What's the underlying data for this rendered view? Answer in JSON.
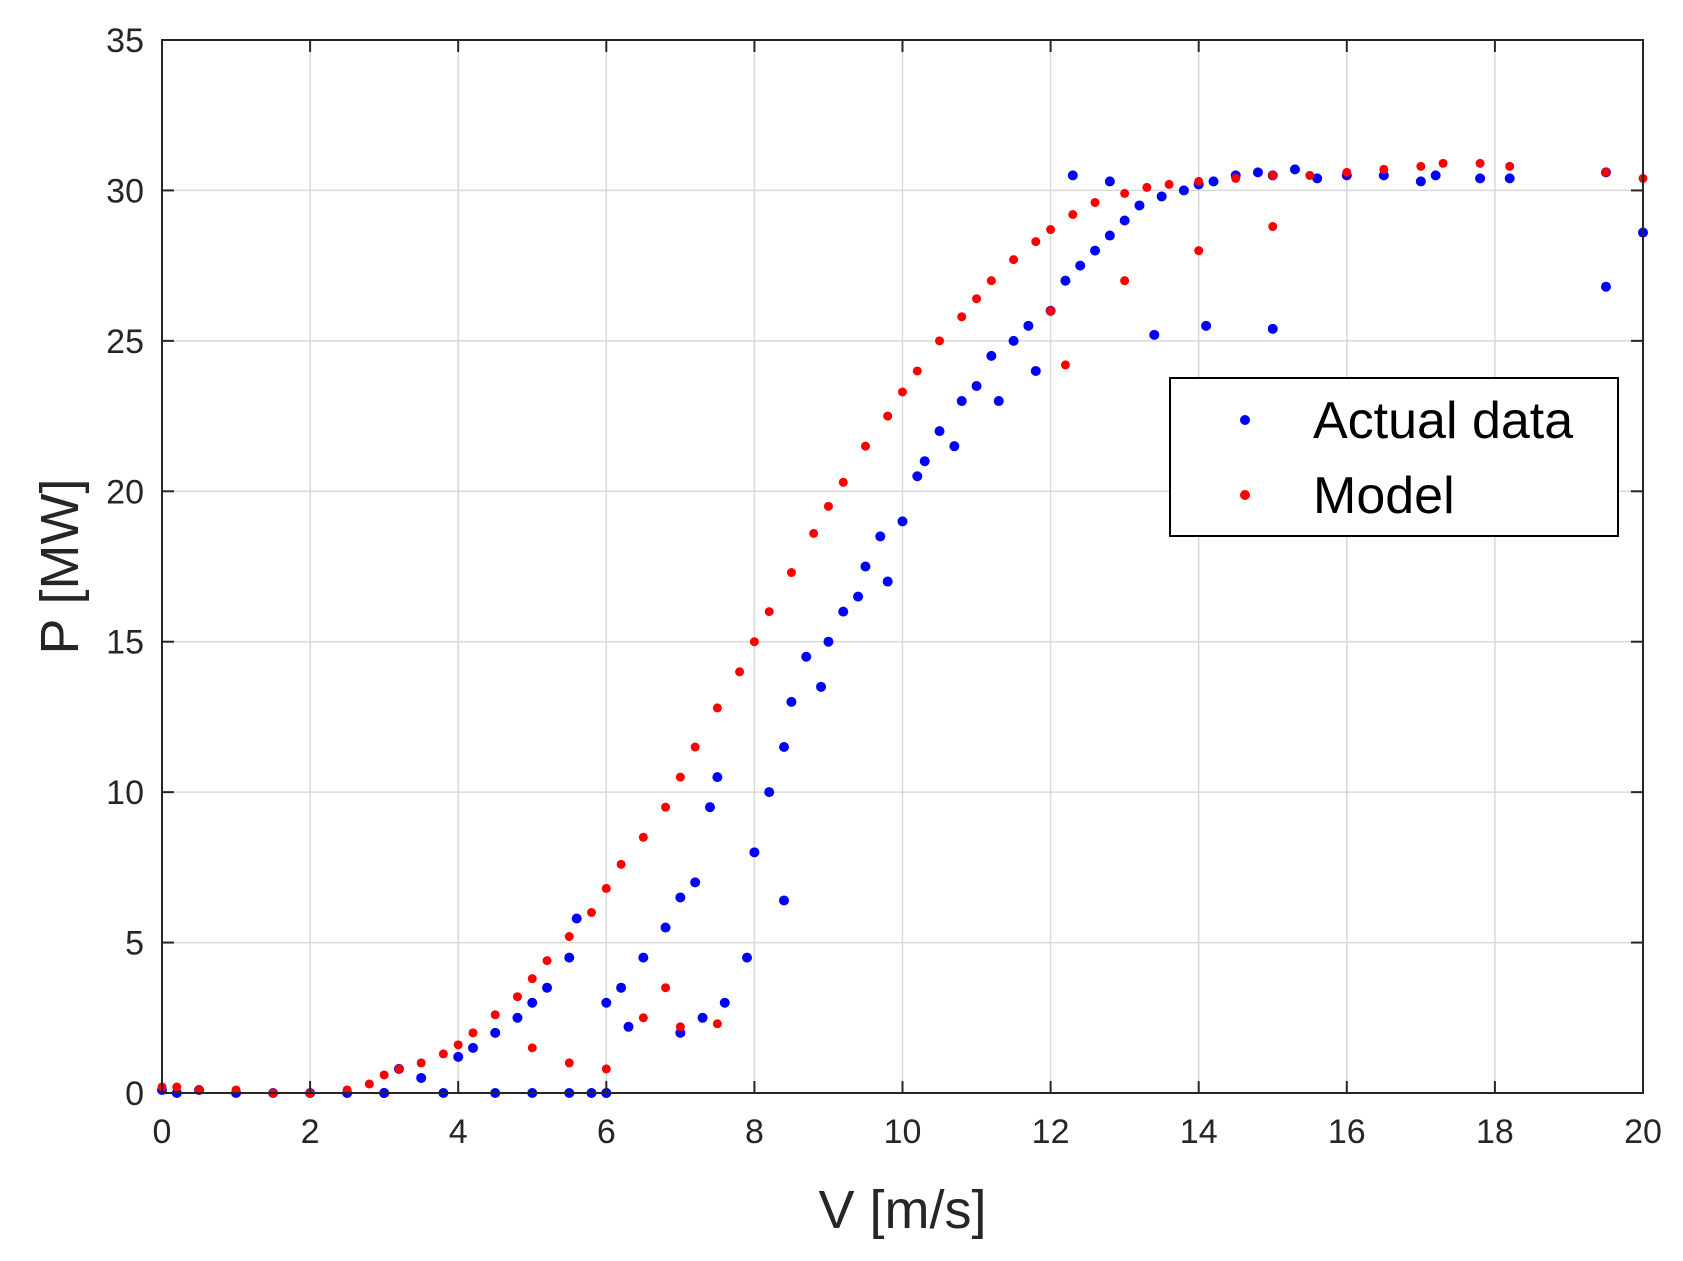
{
  "chart_data": {
    "type": "scatter",
    "title": "",
    "xlabel": "V [m/s]",
    "ylabel": "P [MW]",
    "xlim": [
      0,
      20
    ],
    "ylim": [
      0,
      35
    ],
    "xticks": [
      "0",
      "2",
      "4",
      "6",
      "8",
      "10",
      "12",
      "14",
      "16",
      "18",
      "20"
    ],
    "yticks": [
      "0",
      "5",
      "10",
      "15",
      "20",
      "25",
      "30",
      "35"
    ],
    "grid": true,
    "legend_position": "center-right",
    "series": [
      {
        "name": "Actual data",
        "color": "#0000ff",
        "marker": "dot",
        "x": [
          0.0,
          0.2,
          0.5,
          1.0,
          1.5,
          2.0,
          2.5,
          3.0,
          3.2,
          3.5,
          3.8,
          4.0,
          4.2,
          4.5,
          4.8,
          5.0,
          5.2,
          5.5,
          5.8,
          6.0,
          6.0,
          6.2,
          6.5,
          6.8,
          7.0,
          7.2,
          7.4,
          7.6,
          7.9,
          7.5,
          7.0,
          8.0,
          8.2,
          8.4,
          8.5,
          8.7,
          8.9,
          9.0,
          9.2,
          9.4,
          9.5,
          9.7,
          9.8,
          10.0,
          10.2,
          10.3,
          10.5,
          10.7,
          10.8,
          11.0,
          11.2,
          11.3,
          11.5,
          11.7,
          11.8,
          12.0,
          12.2,
          12.4,
          12.6,
          12.8,
          13.0,
          13.2,
          13.5,
          13.8,
          14.0,
          14.2,
          14.5,
          14.8,
          15.0,
          15.3,
          15.6,
          16.0,
          16.5,
          17.0,
          17.2,
          14.1,
          15.0,
          17.8,
          18.2,
          19.5,
          19.5,
          20.0,
          12.3,
          12.8,
          13.4,
          4.5,
          5.0,
          5.5,
          6.0,
          3.0,
          8.4,
          7.3,
          6.3,
          5.6
        ],
        "y": [
          0.1,
          0.0,
          0.1,
          0.0,
          0.0,
          0.0,
          0.0,
          0.0,
          0.8,
          0.5,
          0.0,
          1.2,
          1.5,
          2.0,
          2.5,
          3.0,
          3.5,
          4.5,
          0.0,
          0.0,
          3.0,
          3.5,
          4.5,
          5.5,
          6.5,
          7.0,
          9.5,
          3.0,
          4.5,
          10.5,
          2.0,
          8.0,
          10.0,
          11.5,
          13.0,
          14.5,
          13.5,
          15.0,
          16.0,
          16.5,
          17.5,
          18.5,
          17.0,
          19.0,
          20.5,
          21.0,
          22.0,
          21.5,
          23.0,
          23.5,
          24.5,
          23.0,
          25.0,
          25.5,
          24.0,
          26.0,
          27.0,
          27.5,
          28.0,
          28.5,
          29.0,
          29.5,
          29.8,
          30.0,
          30.2,
          30.3,
          30.5,
          30.6,
          30.5,
          30.7,
          30.4,
          30.5,
          30.5,
          30.3,
          30.5,
          25.5,
          25.4,
          30.4,
          30.4,
          26.8,
          30.6,
          28.6,
          30.5,
          30.3,
          25.2,
          0.0,
          0.0,
          0.0,
          0.0,
          0.0,
          6.4,
          2.5,
          2.2,
          5.8
        ]
      },
      {
        "name": "Model",
        "color": "#ff0000",
        "marker": "dot",
        "x": [
          0.0,
          0.2,
          0.5,
          1.0,
          1.5,
          2.0,
          2.5,
          2.8,
          3.0,
          3.2,
          3.5,
          3.8,
          4.0,
          4.2,
          4.5,
          4.8,
          5.0,
          5.2,
          5.5,
          5.8,
          6.0,
          6.2,
          6.5,
          6.8,
          7.0,
          7.2,
          7.5,
          7.8,
          8.0,
          8.2,
          8.5,
          8.8,
          9.0,
          9.2,
          9.5,
          9.8,
          10.0,
          10.2,
          10.5,
          10.8,
          11.0,
          11.2,
          11.5,
          11.8,
          12.0,
          12.3,
          12.6,
          13.0,
          13.3,
          13.6,
          14.0,
          14.5,
          15.0,
          15.5,
          16.0,
          16.5,
          17.0,
          17.3,
          17.8,
          18.2,
          19.5,
          20.0,
          12.0,
          13.0,
          14.0,
          15.0,
          5.0,
          5.5,
          6.0,
          6.5,
          7.0,
          7.5,
          12.2,
          6.8
        ],
        "y": [
          0.2,
          0.2,
          0.1,
          0.1,
          0.0,
          0.0,
          0.1,
          0.3,
          0.6,
          0.8,
          1.0,
          1.3,
          1.6,
          2.0,
          2.6,
          3.2,
          3.8,
          4.4,
          5.2,
          6.0,
          6.8,
          7.6,
          8.5,
          9.5,
          10.5,
          11.5,
          12.8,
          14.0,
          15.0,
          16.0,
          17.3,
          18.6,
          19.5,
          20.3,
          21.5,
          22.5,
          23.3,
          24.0,
          25.0,
          25.8,
          26.4,
          27.0,
          27.7,
          28.3,
          28.7,
          29.2,
          29.6,
          29.9,
          30.1,
          30.2,
          30.3,
          30.4,
          30.5,
          30.5,
          30.6,
          30.7,
          30.8,
          30.9,
          30.9,
          30.8,
          30.6,
          30.4,
          26.0,
          27.0,
          28.0,
          28.8,
          1.5,
          1.0,
          0.8,
          2.5,
          2.2,
          2.3,
          24.2,
          3.5
        ]
      }
    ]
  }
}
